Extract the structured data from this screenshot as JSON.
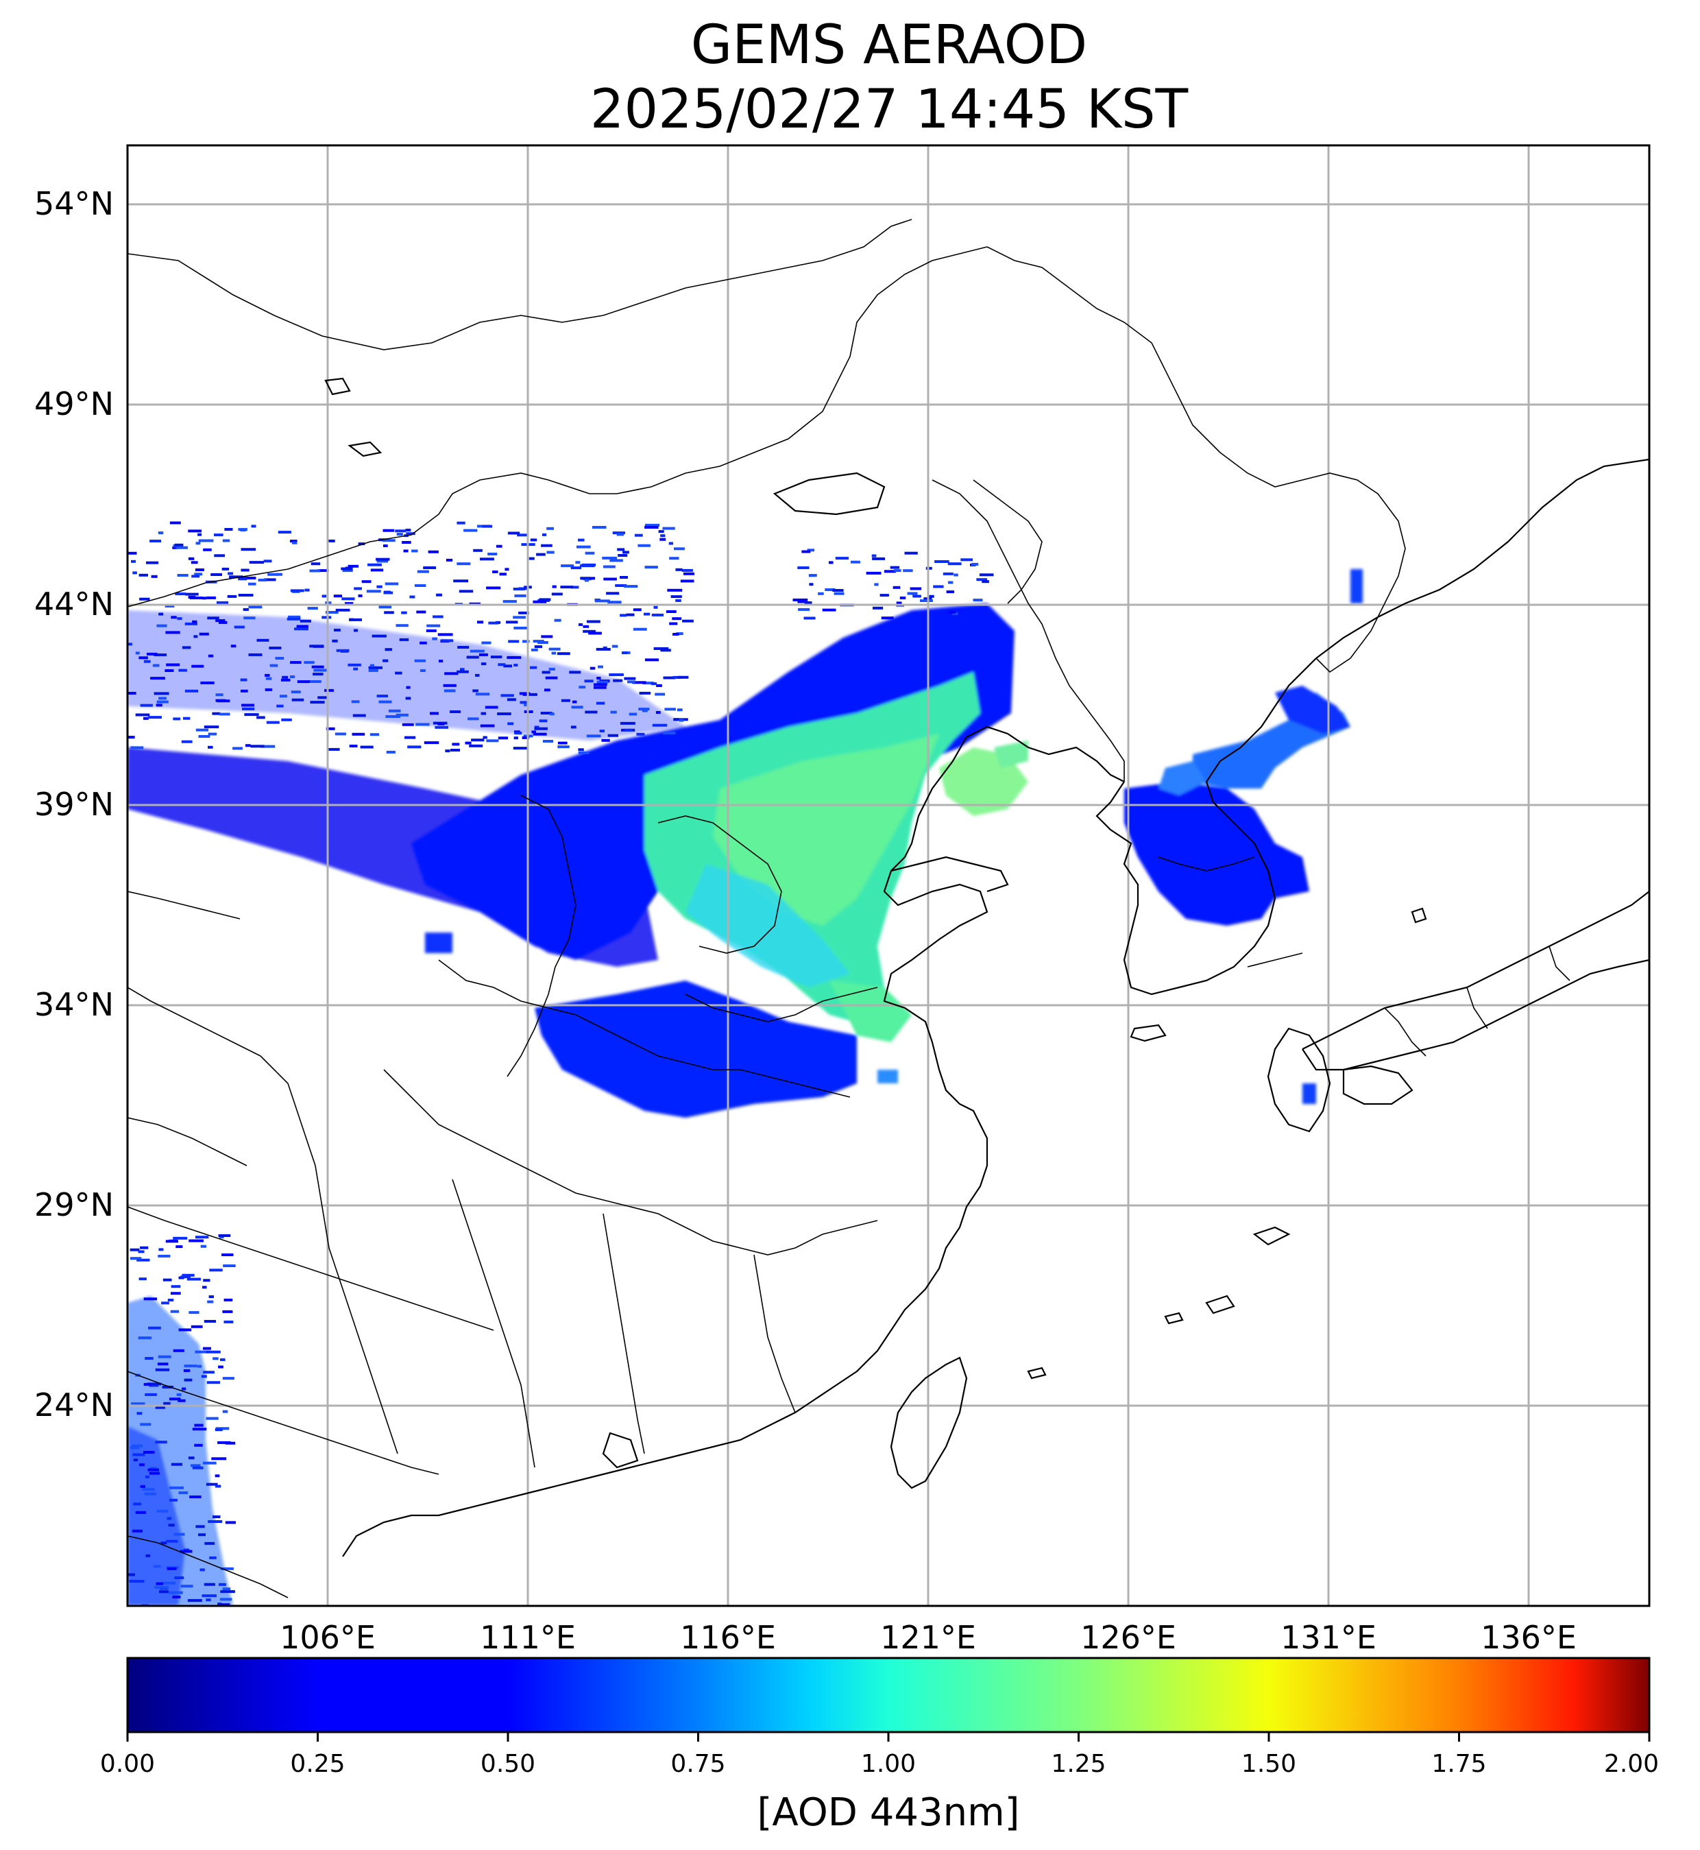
{
  "title_line1": "GEMS AERAOD",
  "title_line2": "2025/02/27 14:45 KST",
  "lat_labels": [
    "54°N",
    "49°N",
    "44°N",
    "39°N",
    "34°N",
    "29°N",
    "24°N"
  ],
  "lon_labels": [
    "106°E",
    "111°E",
    "116°E",
    "121°E",
    "126°E",
    "131°E",
    "136°E"
  ],
  "colorbar": {
    "label": "[AOD 443nm]",
    "ticks": [
      "0.00",
      "0.25",
      "0.50",
      "0.75",
      "1.00",
      "1.25",
      "1.50",
      "1.75",
      "2.00"
    ],
    "range": [
      0,
      2
    ],
    "colormap": "jet"
  },
  "map": {
    "projection": "plate carree",
    "lon_range": [
      102.5,
      140.5
    ],
    "lat_range": [
      20.5,
      55.5
    ],
    "grid": true
  },
  "colors": {
    "jet_0.00": "#00007f",
    "jet_0.25": "#0000ff",
    "jet_0.50": "#007fff",
    "jet_0.75": "#00e5ff",
    "jet_1.00": "#7fff7f",
    "jet_1.25": "#ffe500",
    "jet_1.50": "#ff7f00",
    "jet_1.75": "#ff1a00",
    "jet_2.00": "#7f0000"
  }
}
